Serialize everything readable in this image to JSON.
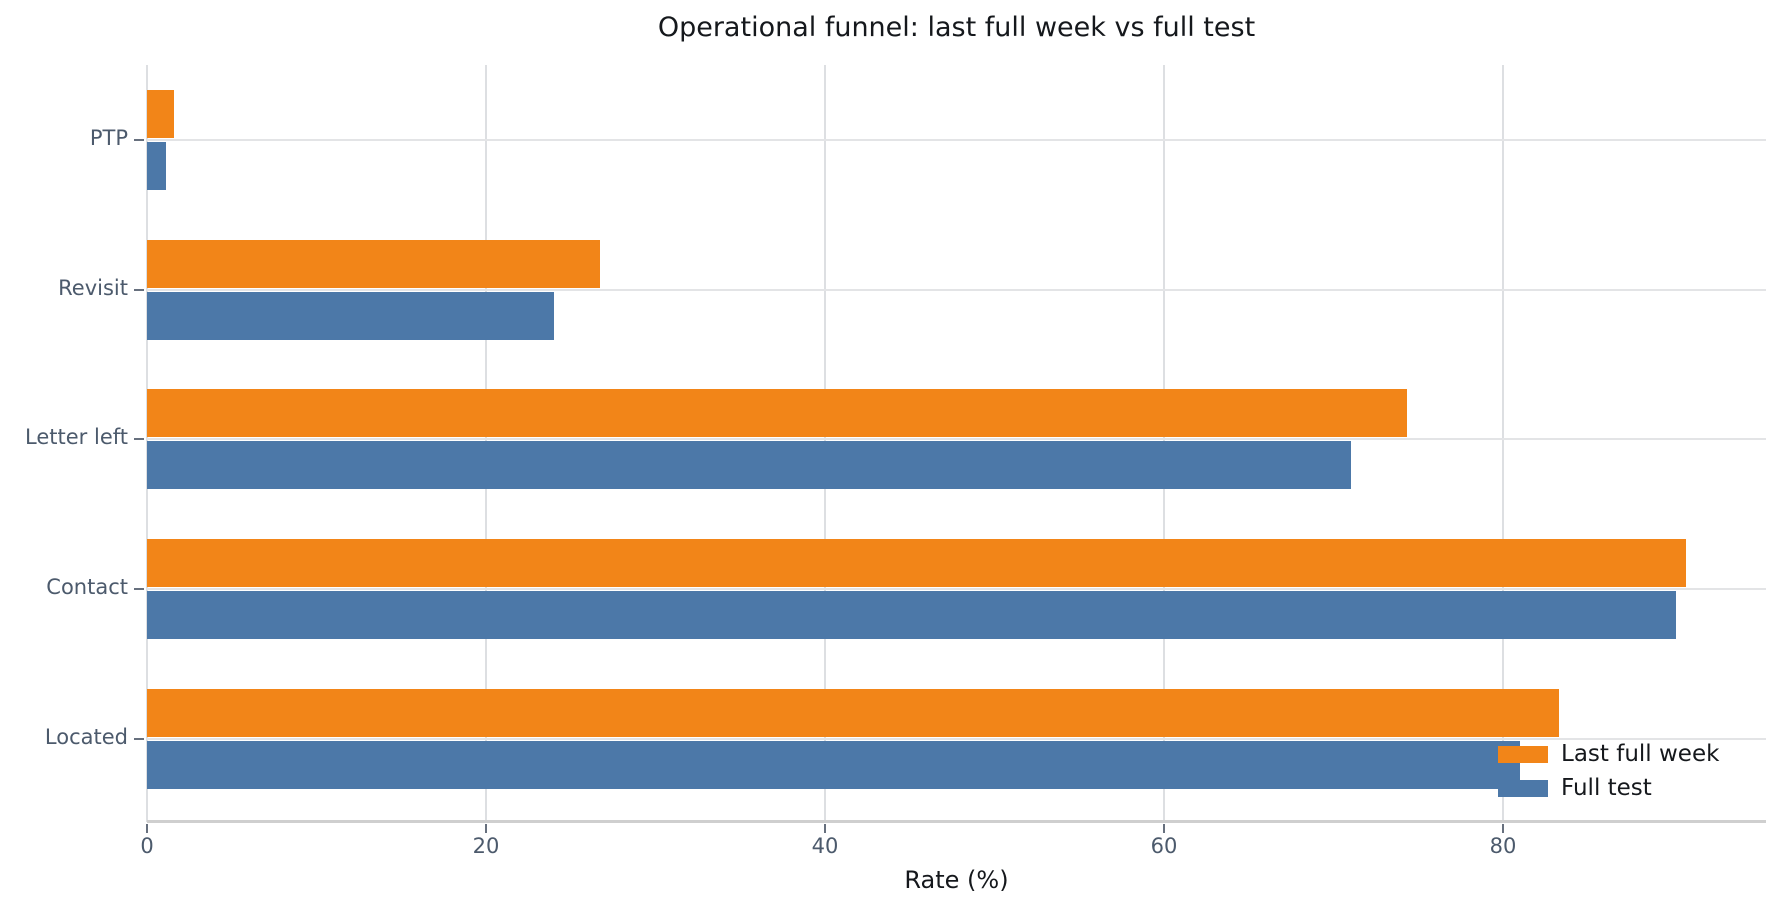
{
  "chart_data": {
    "type": "bar",
    "orientation": "horizontal",
    "title": "Operational funnel: last full week vs full test",
    "xlabel": "Rate (%)",
    "ylabel": "",
    "categories": [
      "PTP",
      "Revisit",
      "Letter left",
      "Contact",
      "Located"
    ],
    "series": [
      {
        "name": "Last full week",
        "color": "#f28518",
        "values": [
          1.6,
          26.7,
          74.3,
          90.8,
          83.3
        ]
      },
      {
        "name": "Full test",
        "color": "#4c78a8",
        "values": [
          1.1,
          24.0,
          71.0,
          90.2,
          81.0
        ]
      }
    ],
    "xlim": [
      0,
      95.5
    ],
    "xticks": [
      0,
      20,
      40,
      60,
      80
    ],
    "grid": true,
    "legend_position": "lower right",
    "colors": {
      "background": "#ffffff",
      "gridline": "#e3e4e6",
      "axis_line": "#cfcfcf",
      "tick_label": "#4c5a6c",
      "title_text": "#15181c"
    }
  }
}
